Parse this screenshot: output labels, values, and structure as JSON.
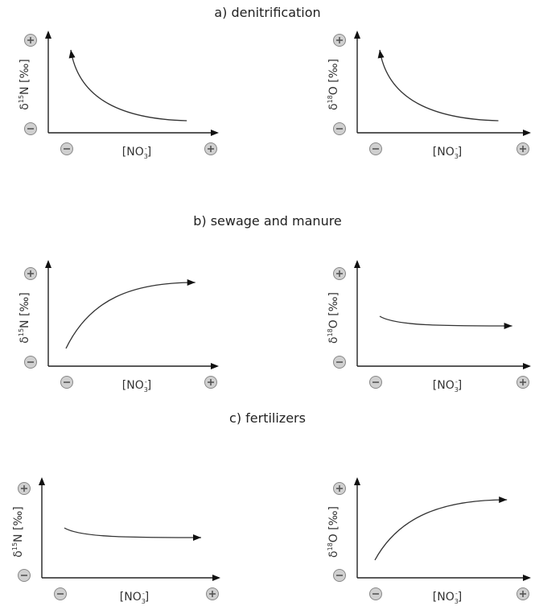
{
  "sections": [
    {
      "title": "a) denitrification"
    },
    {
      "title": "b) sewage and manure"
    },
    {
      "title": "c) fertilizers"
    }
  ],
  "panels": [
    {
      "id": "a-n",
      "section": 0,
      "ylabel": {
        "pre": "δ",
        "sup": "15",
        "post": "N [‰]"
      },
      "xlabel": {
        "pre": "[NO",
        "sub": "3",
        "sup": "-",
        "post": "]"
      },
      "curve": "decay"
    },
    {
      "id": "a-o",
      "section": 0,
      "ylabel": {
        "pre": "δ",
        "sup": "18",
        "post": "O [‰]"
      },
      "xlabel": {
        "pre": "[NO",
        "sub": "3",
        "sup": "-",
        "post": "]"
      },
      "curve": "decay"
    },
    {
      "id": "b-n",
      "section": 1,
      "ylabel": {
        "pre": "δ",
        "sup": "15",
        "post": "N [‰]"
      },
      "xlabel": {
        "pre": "[NO",
        "sub": "3",
        "sup": "-",
        "post": "]"
      },
      "curve": "rise"
    },
    {
      "id": "b-o",
      "section": 1,
      "ylabel": {
        "pre": "δ",
        "sup": "18",
        "post": "O [‰]"
      },
      "xlabel": {
        "pre": "[NO",
        "sub": "3",
        "sup": "-",
        "post": "]"
      },
      "curve": "flat"
    },
    {
      "id": "c-n",
      "section": 2,
      "ylabel": {
        "pre": "δ",
        "sup": "15",
        "post": "N [‰]"
      },
      "xlabel": {
        "pre": "[NO",
        "sub": "3",
        "sup": "-",
        "post": "]"
      },
      "curve": "flat"
    },
    {
      "id": "c-o",
      "section": 2,
      "ylabel": {
        "pre": "δ",
        "sup": "18",
        "post": "O [‰]"
      },
      "xlabel": {
        "pre": "[NO",
        "sub": "3",
        "sup": "-",
        "post": "]"
      },
      "curve": "rise"
    }
  ],
  "colors": {
    "axis": "#222222",
    "curve": "#333333",
    "sign_fill": "#d0d0d0",
    "sign_mark": "#555555",
    "text": "#333333"
  }
}
